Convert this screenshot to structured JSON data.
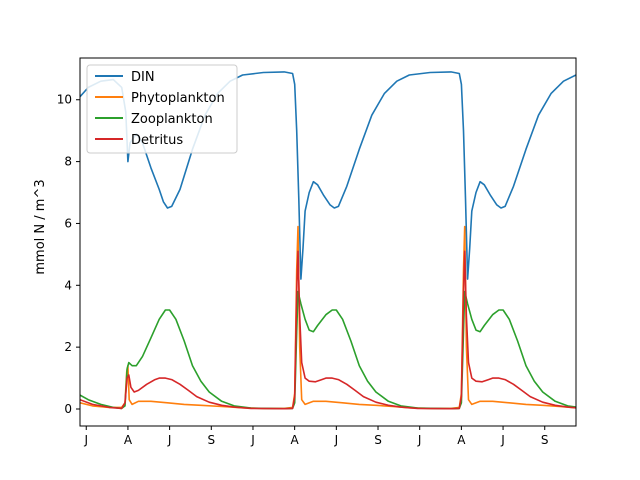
{
  "chart_data": {
    "type": "line",
    "title": "",
    "xlabel": "",
    "ylabel": "mmol N / m^3",
    "x_ticks": [
      {
        "t": 0.25,
        "label": "J"
      },
      {
        "t": 1.25,
        "label": "A"
      },
      {
        "t": 2.25,
        "label": "J"
      },
      {
        "t": 3.25,
        "label": "S"
      },
      {
        "t": 4.25,
        "label": "J"
      },
      {
        "t": 5.25,
        "label": "A"
      },
      {
        "t": 6.25,
        "label": "J"
      },
      {
        "t": 7.25,
        "label": "S"
      },
      {
        "t": 8.25,
        "label": "J"
      },
      {
        "t": 9.25,
        "label": "A"
      },
      {
        "t": 10.25,
        "label": "J"
      },
      {
        "t": 11.25,
        "label": "S"
      }
    ],
    "xlim": [
      0.1,
      12.0
    ],
    "ylim": [
      -0.55,
      11.35
    ],
    "y_ticks": [
      0,
      2,
      4,
      6,
      8,
      10
    ],
    "grid": false,
    "legend_position": "top-left",
    "series": [
      {
        "name": "DIN",
        "color": "#1f77b4",
        "points": [
          [
            0.1,
            10.1
          ],
          [
            0.3,
            10.4
          ],
          [
            0.6,
            10.6
          ],
          [
            0.9,
            10.65
          ],
          [
            1.1,
            10.4
          ],
          [
            1.2,
            9.6
          ],
          [
            1.25,
            8.0
          ],
          [
            1.3,
            8.6
          ],
          [
            1.45,
            8.9
          ],
          [
            1.6,
            8.6
          ],
          [
            1.8,
            7.8
          ],
          [
            2.0,
            7.1
          ],
          [
            2.1,
            6.7
          ],
          [
            2.2,
            6.5
          ],
          [
            2.3,
            6.55
          ],
          [
            2.5,
            7.1
          ],
          [
            2.8,
            8.4
          ],
          [
            3.1,
            9.5
          ],
          [
            3.4,
            10.2
          ],
          [
            3.7,
            10.6
          ],
          [
            4.0,
            10.8
          ],
          [
            4.5,
            10.88
          ],
          [
            5.0,
            10.9
          ],
          [
            5.2,
            10.85
          ],
          [
            5.25,
            10.5
          ],
          [
            5.3,
            9.0
          ],
          [
            5.35,
            6.8
          ],
          [
            5.4,
            4.2
          ],
          [
            5.45,
            5.2
          ],
          [
            5.5,
            6.4
          ],
          [
            5.6,
            7.0
          ],
          [
            5.7,
            7.35
          ],
          [
            5.8,
            7.25
          ],
          [
            5.95,
            6.9
          ],
          [
            6.1,
            6.6
          ],
          [
            6.2,
            6.5
          ],
          [
            6.3,
            6.55
          ],
          [
            6.5,
            7.2
          ],
          [
            6.8,
            8.4
          ],
          [
            7.1,
            9.5
          ],
          [
            7.4,
            10.2
          ],
          [
            7.7,
            10.6
          ],
          [
            8.0,
            10.8
          ],
          [
            8.5,
            10.88
          ],
          [
            9.0,
            10.9
          ],
          [
            9.2,
            10.85
          ],
          [
            9.25,
            10.5
          ],
          [
            9.3,
            9.0
          ],
          [
            9.35,
            6.8
          ],
          [
            9.4,
            4.2
          ],
          [
            9.45,
            5.2
          ],
          [
            9.5,
            6.4
          ],
          [
            9.6,
            7.0
          ],
          [
            9.7,
            7.35
          ],
          [
            9.8,
            7.25
          ],
          [
            9.95,
            6.9
          ],
          [
            10.1,
            6.6
          ],
          [
            10.2,
            6.5
          ],
          [
            10.3,
            6.55
          ],
          [
            10.5,
            7.2
          ],
          [
            10.8,
            8.4
          ],
          [
            11.1,
            9.5
          ],
          [
            11.4,
            10.2
          ],
          [
            11.7,
            10.6
          ],
          [
            12.0,
            10.8
          ]
        ]
      },
      {
        "name": "Phytoplankton",
        "color": "#ff7f0e",
        "points": [
          [
            0.1,
            0.2
          ],
          [
            0.4,
            0.1
          ],
          [
            0.8,
            0.05
          ],
          [
            1.1,
            0.05
          ],
          [
            1.18,
            0.2
          ],
          [
            1.22,
            1.2
          ],
          [
            1.25,
            1.4
          ],
          [
            1.28,
            0.3
          ],
          [
            1.35,
            0.15
          ],
          [
            1.5,
            0.25
          ],
          [
            1.8,
            0.25
          ],
          [
            2.2,
            0.2
          ],
          [
            2.6,
            0.15
          ],
          [
            3.0,
            0.12
          ],
          [
            3.5,
            0.08
          ],
          [
            4.0,
            0.04
          ],
          [
            4.5,
            0.02
          ],
          [
            5.0,
            0.02
          ],
          [
            5.2,
            0.05
          ],
          [
            5.25,
            0.5
          ],
          [
            5.3,
            4.5
          ],
          [
            5.33,
            5.9
          ],
          [
            5.37,
            2.0
          ],
          [
            5.42,
            0.3
          ],
          [
            5.5,
            0.15
          ],
          [
            5.7,
            0.25
          ],
          [
            6.0,
            0.25
          ],
          [
            6.4,
            0.2
          ],
          [
            6.8,
            0.15
          ],
          [
            7.2,
            0.12
          ],
          [
            7.6,
            0.08
          ],
          [
            8.0,
            0.04
          ],
          [
            8.5,
            0.02
          ],
          [
            9.0,
            0.02
          ],
          [
            9.2,
            0.05
          ],
          [
            9.25,
            0.5
          ],
          [
            9.3,
            4.5
          ],
          [
            9.33,
            5.9
          ],
          [
            9.37,
            2.0
          ],
          [
            9.42,
            0.3
          ],
          [
            9.5,
            0.15
          ],
          [
            9.7,
            0.25
          ],
          [
            10.0,
            0.25
          ],
          [
            10.4,
            0.2
          ],
          [
            10.8,
            0.15
          ],
          [
            11.2,
            0.12
          ],
          [
            11.6,
            0.08
          ],
          [
            12.0,
            0.04
          ]
        ]
      },
      {
        "name": "Zooplankton",
        "color": "#2ca02c",
        "points": [
          [
            0.1,
            0.45
          ],
          [
            0.3,
            0.3
          ],
          [
            0.6,
            0.15
          ],
          [
            0.9,
            0.05
          ],
          [
            1.1,
            0.02
          ],
          [
            1.18,
            0.1
          ],
          [
            1.23,
            1.3
          ],
          [
            1.27,
            1.5
          ],
          [
            1.35,
            1.4
          ],
          [
            1.45,
            1.4
          ],
          [
            1.6,
            1.7
          ],
          [
            1.8,
            2.3
          ],
          [
            2.0,
            2.9
          ],
          [
            2.15,
            3.2
          ],
          [
            2.25,
            3.2
          ],
          [
            2.4,
            2.9
          ],
          [
            2.6,
            2.2
          ],
          [
            2.8,
            1.4
          ],
          [
            3.0,
            0.9
          ],
          [
            3.2,
            0.55
          ],
          [
            3.5,
            0.25
          ],
          [
            3.8,
            0.1
          ],
          [
            4.2,
            0.03
          ],
          [
            5.0,
            0.01
          ],
          [
            5.2,
            0.02
          ],
          [
            5.25,
            0.2
          ],
          [
            5.3,
            2.5
          ],
          [
            5.33,
            3.8
          ],
          [
            5.4,
            3.4
          ],
          [
            5.5,
            2.9
          ],
          [
            5.6,
            2.55
          ],
          [
            5.7,
            2.5
          ],
          [
            5.8,
            2.7
          ],
          [
            6.0,
            3.05
          ],
          [
            6.15,
            3.2
          ],
          [
            6.25,
            3.2
          ],
          [
            6.4,
            2.9
          ],
          [
            6.6,
            2.2
          ],
          [
            6.8,
            1.4
          ],
          [
            7.0,
            0.9
          ],
          [
            7.2,
            0.55
          ],
          [
            7.5,
            0.25
          ],
          [
            7.8,
            0.1
          ],
          [
            8.2,
            0.03
          ],
          [
            9.0,
            0.01
          ],
          [
            9.2,
            0.02
          ],
          [
            9.25,
            0.2
          ],
          [
            9.3,
            2.5
          ],
          [
            9.33,
            3.8
          ],
          [
            9.4,
            3.4
          ],
          [
            9.5,
            2.9
          ],
          [
            9.6,
            2.55
          ],
          [
            9.7,
            2.5
          ],
          [
            9.8,
            2.7
          ],
          [
            10.0,
            3.05
          ],
          [
            10.15,
            3.2
          ],
          [
            10.25,
            3.2
          ],
          [
            10.4,
            2.9
          ],
          [
            10.6,
            2.2
          ],
          [
            10.8,
            1.4
          ],
          [
            11.0,
            0.9
          ],
          [
            11.2,
            0.55
          ],
          [
            11.5,
            0.25
          ],
          [
            11.8,
            0.1
          ],
          [
            12.0,
            0.06
          ]
        ]
      },
      {
        "name": "Detritus",
        "color": "#d62728",
        "points": [
          [
            0.1,
            0.3
          ],
          [
            0.4,
            0.15
          ],
          [
            0.8,
            0.05
          ],
          [
            1.1,
            0.02
          ],
          [
            1.18,
            0.2
          ],
          [
            1.23,
            1.0
          ],
          [
            1.27,
            1.1
          ],
          [
            1.32,
            0.7
          ],
          [
            1.4,
            0.55
          ],
          [
            1.5,
            0.6
          ],
          [
            1.7,
            0.8
          ],
          [
            1.9,
            0.95
          ],
          [
            2.0,
            1.0
          ],
          [
            2.15,
            1.0
          ],
          [
            2.3,
            0.95
          ],
          [
            2.5,
            0.8
          ],
          [
            2.7,
            0.6
          ],
          [
            2.9,
            0.4
          ],
          [
            3.2,
            0.22
          ],
          [
            3.5,
            0.12
          ],
          [
            3.8,
            0.06
          ],
          [
            4.2,
            0.02
          ],
          [
            5.0,
            0.01
          ],
          [
            5.2,
            0.02
          ],
          [
            5.25,
            0.4
          ],
          [
            5.3,
            3.8
          ],
          [
            5.33,
            5.1
          ],
          [
            5.37,
            3.0
          ],
          [
            5.42,
            1.5
          ],
          [
            5.5,
            1.0
          ],
          [
            5.6,
            0.9
          ],
          [
            5.75,
            0.88
          ],
          [
            5.9,
            0.95
          ],
          [
            6.0,
            1.0
          ],
          [
            6.15,
            1.0
          ],
          [
            6.3,
            0.95
          ],
          [
            6.5,
            0.8
          ],
          [
            6.7,
            0.6
          ],
          [
            6.9,
            0.4
          ],
          [
            7.2,
            0.22
          ],
          [
            7.5,
            0.12
          ],
          [
            7.8,
            0.06
          ],
          [
            8.2,
            0.02
          ],
          [
            9.0,
            0.01
          ],
          [
            9.2,
            0.02
          ],
          [
            9.25,
            0.4
          ],
          [
            9.3,
            3.8
          ],
          [
            9.33,
            5.1
          ],
          [
            9.37,
            3.0
          ],
          [
            9.42,
            1.5
          ],
          [
            9.5,
            1.0
          ],
          [
            9.6,
            0.9
          ],
          [
            9.75,
            0.88
          ],
          [
            9.9,
            0.95
          ],
          [
            10.0,
            1.0
          ],
          [
            10.15,
            1.0
          ],
          [
            10.3,
            0.95
          ],
          [
            10.5,
            0.8
          ],
          [
            10.7,
            0.6
          ],
          [
            10.9,
            0.4
          ],
          [
            11.2,
            0.22
          ],
          [
            11.5,
            0.12
          ],
          [
            11.8,
            0.06
          ],
          [
            12.0,
            0.04
          ]
        ]
      }
    ]
  }
}
